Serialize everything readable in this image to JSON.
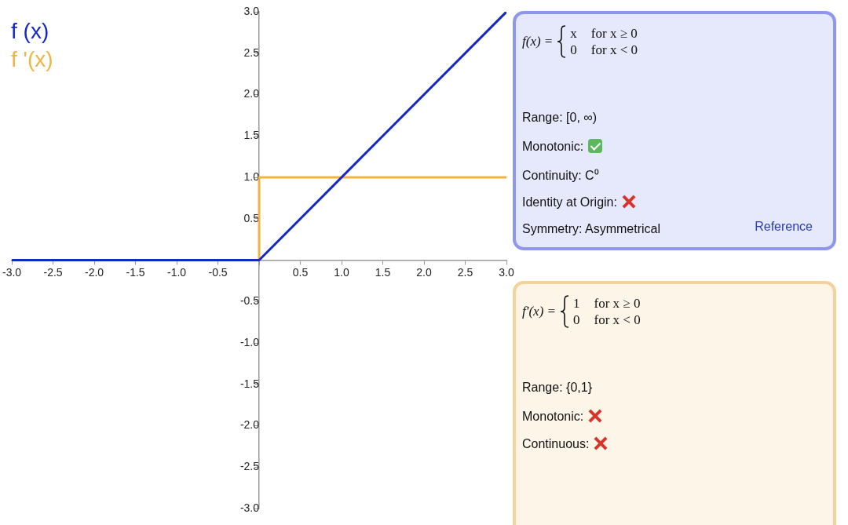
{
  "chart_data": [
    {
      "type": "line",
      "legend": "top left",
      "grid": false,
      "marker": "none",
      "line_style": "solid",
      "xlim": [
        -3,
        3
      ],
      "ylim": [
        -3,
        3
      ],
      "xticks": [
        {
          "value": -3,
          "label": "-3.0"
        },
        -2.5,
        {
          "value": -2,
          "label": "-2.0"
        },
        -1.5,
        {
          "value": -1,
          "label": "-1.0"
        },
        -0.5,
        {
          "value": 0,
          "label": null
        },
        0.5,
        {
          "value": 1,
          "label": "1.0"
        },
        1.5,
        {
          "value": 2,
          "label": "2.0"
        },
        2.5,
        {
          "value": 3,
          "label": "3.0"
        }
      ],
      "yticks": [
        {
          "value": -3,
          "label": "-3.0"
        },
        -2.5,
        {
          "value": -2,
          "label": "-2.0"
        },
        -1.5,
        {
          "value": -1,
          "label": "-1.0"
        },
        -0.5,
        {
          "value": 0,
          "label": null
        },
        0.5,
        {
          "value": 1,
          "label": "1.0"
        },
        1.5,
        {
          "value": 2,
          "label": "2.0"
        },
        2.5,
        {
          "value": 3,
          "label": "3.0"
        }
      ],
      "series": [
        {
          "name": "f (x)",
          "color": "#1428c8",
          "x": [
            -3,
            0,
            3
          ],
          "values": [
            0,
            0,
            3
          ]
        },
        {
          "name": "f '(x)",
          "color": "#f0b443",
          "x": [
            -3,
            0,
            0,
            3
          ],
          "values": [
            0,
            0,
            1,
            1
          ]
        }
      ]
    },
    {
      "type": "other",
      "annotations": [
        "f(x) =",
        "x",
        "for x ≥ 0",
        "0",
        "for x < 0",
        "Range: [0, ∞)",
        "Monotonic:",
        "Continuity: C⁰",
        "Identity at Origin:",
        "Symmetry: Asymmetrical",
        "Reference"
      ]
    },
    {
      "type": "other",
      "annotations": [
        "f′(x) =",
        "1",
        "for x ≥ 0",
        "0",
        "for x < 0",
        "Range: {0,1}",
        "Monotonic:",
        "Continuous:"
      ]
    }
  ]
}
